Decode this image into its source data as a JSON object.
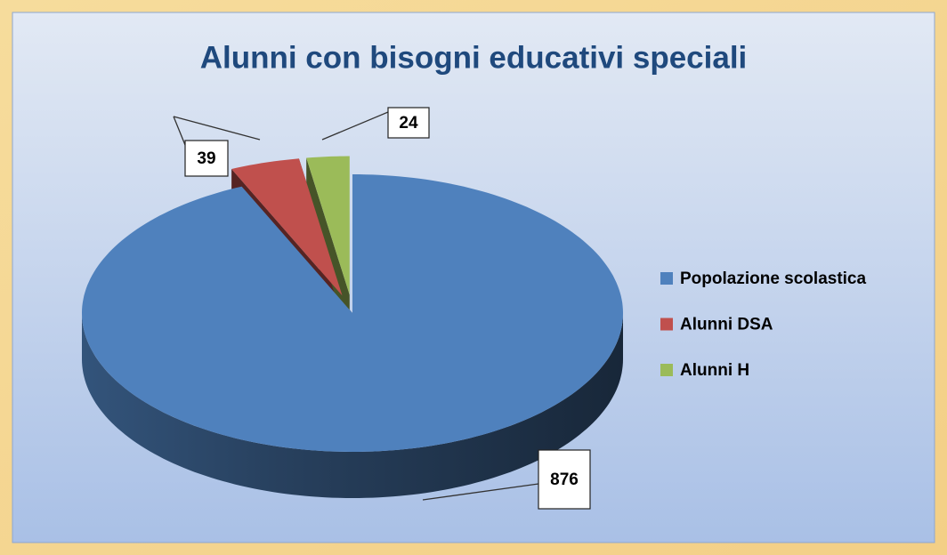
{
  "chart_data": {
    "type": "pie",
    "title": "Alunni con bisogni educativi speciali",
    "categories": [
      "Popolazione scolastica",
      "Alunni DSA",
      "Alunni H"
    ],
    "values": [
      876,
      39,
      24
    ],
    "colors": [
      "#4f81bd",
      "#c0504d",
      "#9bbb59"
    ],
    "legend": "right"
  }
}
